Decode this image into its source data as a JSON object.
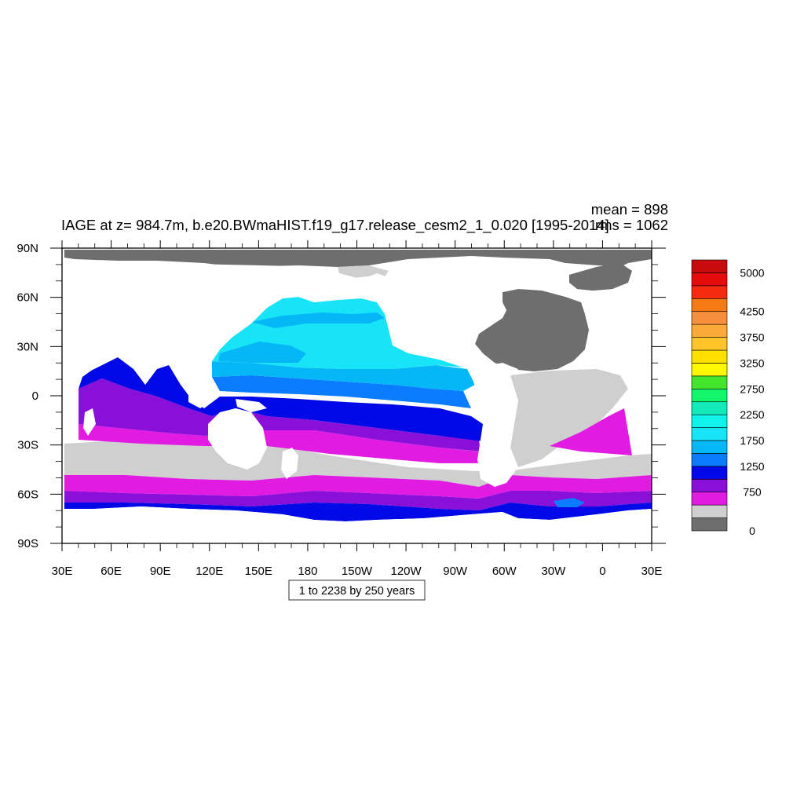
{
  "chart_data": {
    "type": "heatmap",
    "title": "IAGE at z= 984.7m, b.e20.BWmaHIST.f19_g17.release_cesm2_1_0.020 [1995-2014]",
    "stats": {
      "mean": "mean = 898",
      "rms": "rms = 1062"
    },
    "variable": "IAGE",
    "depth": "z= 984.7m",
    "x_ticks": [
      "30E",
      "60E",
      "90E",
      "120E",
      "150E",
      "180",
      "150W",
      "120W",
      "90W",
      "60W",
      "30W",
      "0",
      "30E"
    ],
    "x_range": [
      30,
      390
    ],
    "y_ticks": [
      "90N",
      "60N",
      "30N",
      "0",
      "30S",
      "60S",
      "90S"
    ],
    "y_range": [
      90,
      -90
    ],
    "contour_info": "1 to 2238 by 250 years",
    "colorbar": {
      "labels": [
        "5000",
        "4250",
        "3750",
        "3250",
        "2750",
        "2250",
        "1750",
        "1250",
        "750",
        "0"
      ],
      "levels": [
        0,
        250,
        500,
        750,
        1000,
        1250,
        1500,
        1750,
        2000,
        2250,
        2500,
        2750,
        3000,
        3250,
        3500,
        3750,
        4000,
        4250,
        4500,
        4750,
        5000
      ],
      "colors": [
        "#6e6e6e",
        "#cfcfcf",
        "#e11be1",
        "#8a0fd8",
        "#0009e6",
        "#0a7cff",
        "#05b8f5",
        "#18e4f7",
        "#10f2ea",
        "#12ebb9",
        "#13f56b",
        "#44e62c",
        "#fff800",
        "#ffe000",
        "#ffc528",
        "#fbaa38",
        "#f58f3b",
        "#f57a14",
        "#f52b10",
        "#e50c0c",
        "#c90b0b"
      ]
    },
    "legend_position": "right",
    "grid": false
  }
}
